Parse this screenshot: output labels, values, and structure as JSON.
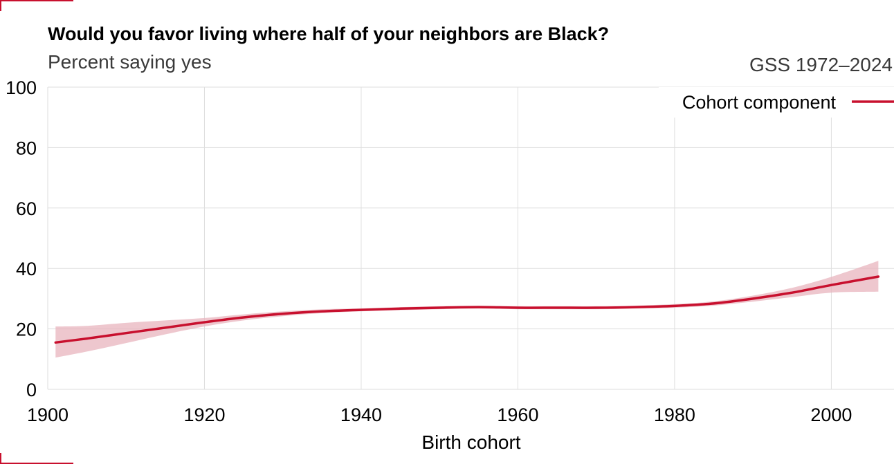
{
  "header": {
    "title": "Would you favor living where half of your neighbors are Black?",
    "subtitle": "Percent saying yes",
    "source": "GSS 1972–2024"
  },
  "colors": {
    "line": "#c8102e",
    "band": "#e8b4bd",
    "grid": "#dedede"
  },
  "chart_data": {
    "type": "line",
    "title": "Would you favor living where half of your neighbors are Black?",
    "subtitle": "Percent saying yes",
    "xlabel": "Birth cohort",
    "ylabel": "",
    "xlim": [
      1900,
      2008
    ],
    "ylim": [
      0,
      100
    ],
    "x_ticks": [
      1900,
      1920,
      1940,
      1960,
      1980,
      2000
    ],
    "y_ticks": [
      0,
      20,
      40,
      60,
      80,
      100
    ],
    "grid": true,
    "legend": {
      "placement": "top-right",
      "entries": [
        "Cohort component"
      ]
    },
    "series": [
      {
        "name": "Cohort component",
        "x": [
          1901,
          1905,
          1910,
          1915,
          1920,
          1925,
          1930,
          1935,
          1940,
          1945,
          1950,
          1955,
          1960,
          1965,
          1970,
          1975,
          1980,
          1985,
          1990,
          1995,
          2000,
          2006
        ],
        "y": [
          15.5,
          16.8,
          18.6,
          20.4,
          22.2,
          23.8,
          25.0,
          25.8,
          26.3,
          26.7,
          27.0,
          27.2,
          27.0,
          27.0,
          27.0,
          27.2,
          27.6,
          28.4,
          30.0,
          32.0,
          34.5,
          37.3
        ],
        "lower": [
          10.5,
          12.5,
          15.3,
          18.2,
          20.8,
          22.8,
          24.2,
          25.2,
          25.8,
          26.2,
          26.5,
          26.7,
          26.5,
          26.5,
          26.5,
          26.7,
          27.0,
          27.7,
          29.0,
          30.5,
          32.0,
          32.3
        ],
        "upper": [
          20.8,
          21.0,
          22.0,
          22.8,
          23.6,
          24.8,
          25.8,
          26.5,
          26.8,
          27.2,
          27.5,
          27.7,
          27.5,
          27.5,
          27.5,
          27.7,
          28.2,
          29.1,
          31.0,
          33.6,
          37.2,
          42.5
        ]
      }
    ]
  }
}
